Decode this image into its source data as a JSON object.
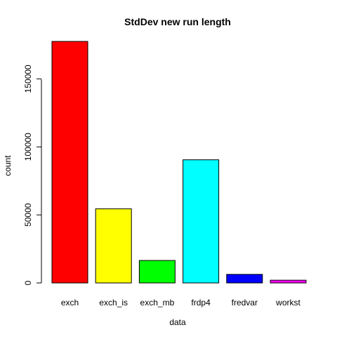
{
  "chart_data": {
    "type": "bar",
    "title": "StdDev new run length",
    "xlabel": "data",
    "ylabel": "count",
    "categories": [
      "exch",
      "exch_is",
      "exch_mb",
      "frdp4",
      "fredvar",
      "workst"
    ],
    "values": [
      177500,
      54500,
      16500,
      90500,
      6300,
      2000
    ],
    "colors": [
      "#ff0000",
      "#ffff00",
      "#00ff00",
      "#00ffff",
      "#0000ff",
      "#ff00ff"
    ],
    "y_ticks": [
      0,
      50000,
      100000,
      150000
    ],
    "y_tick_labels": [
      "0",
      "50000",
      "100000",
      "150000"
    ],
    "ylim": [
      0,
      185000
    ],
    "grid": false,
    "legend": "none"
  }
}
